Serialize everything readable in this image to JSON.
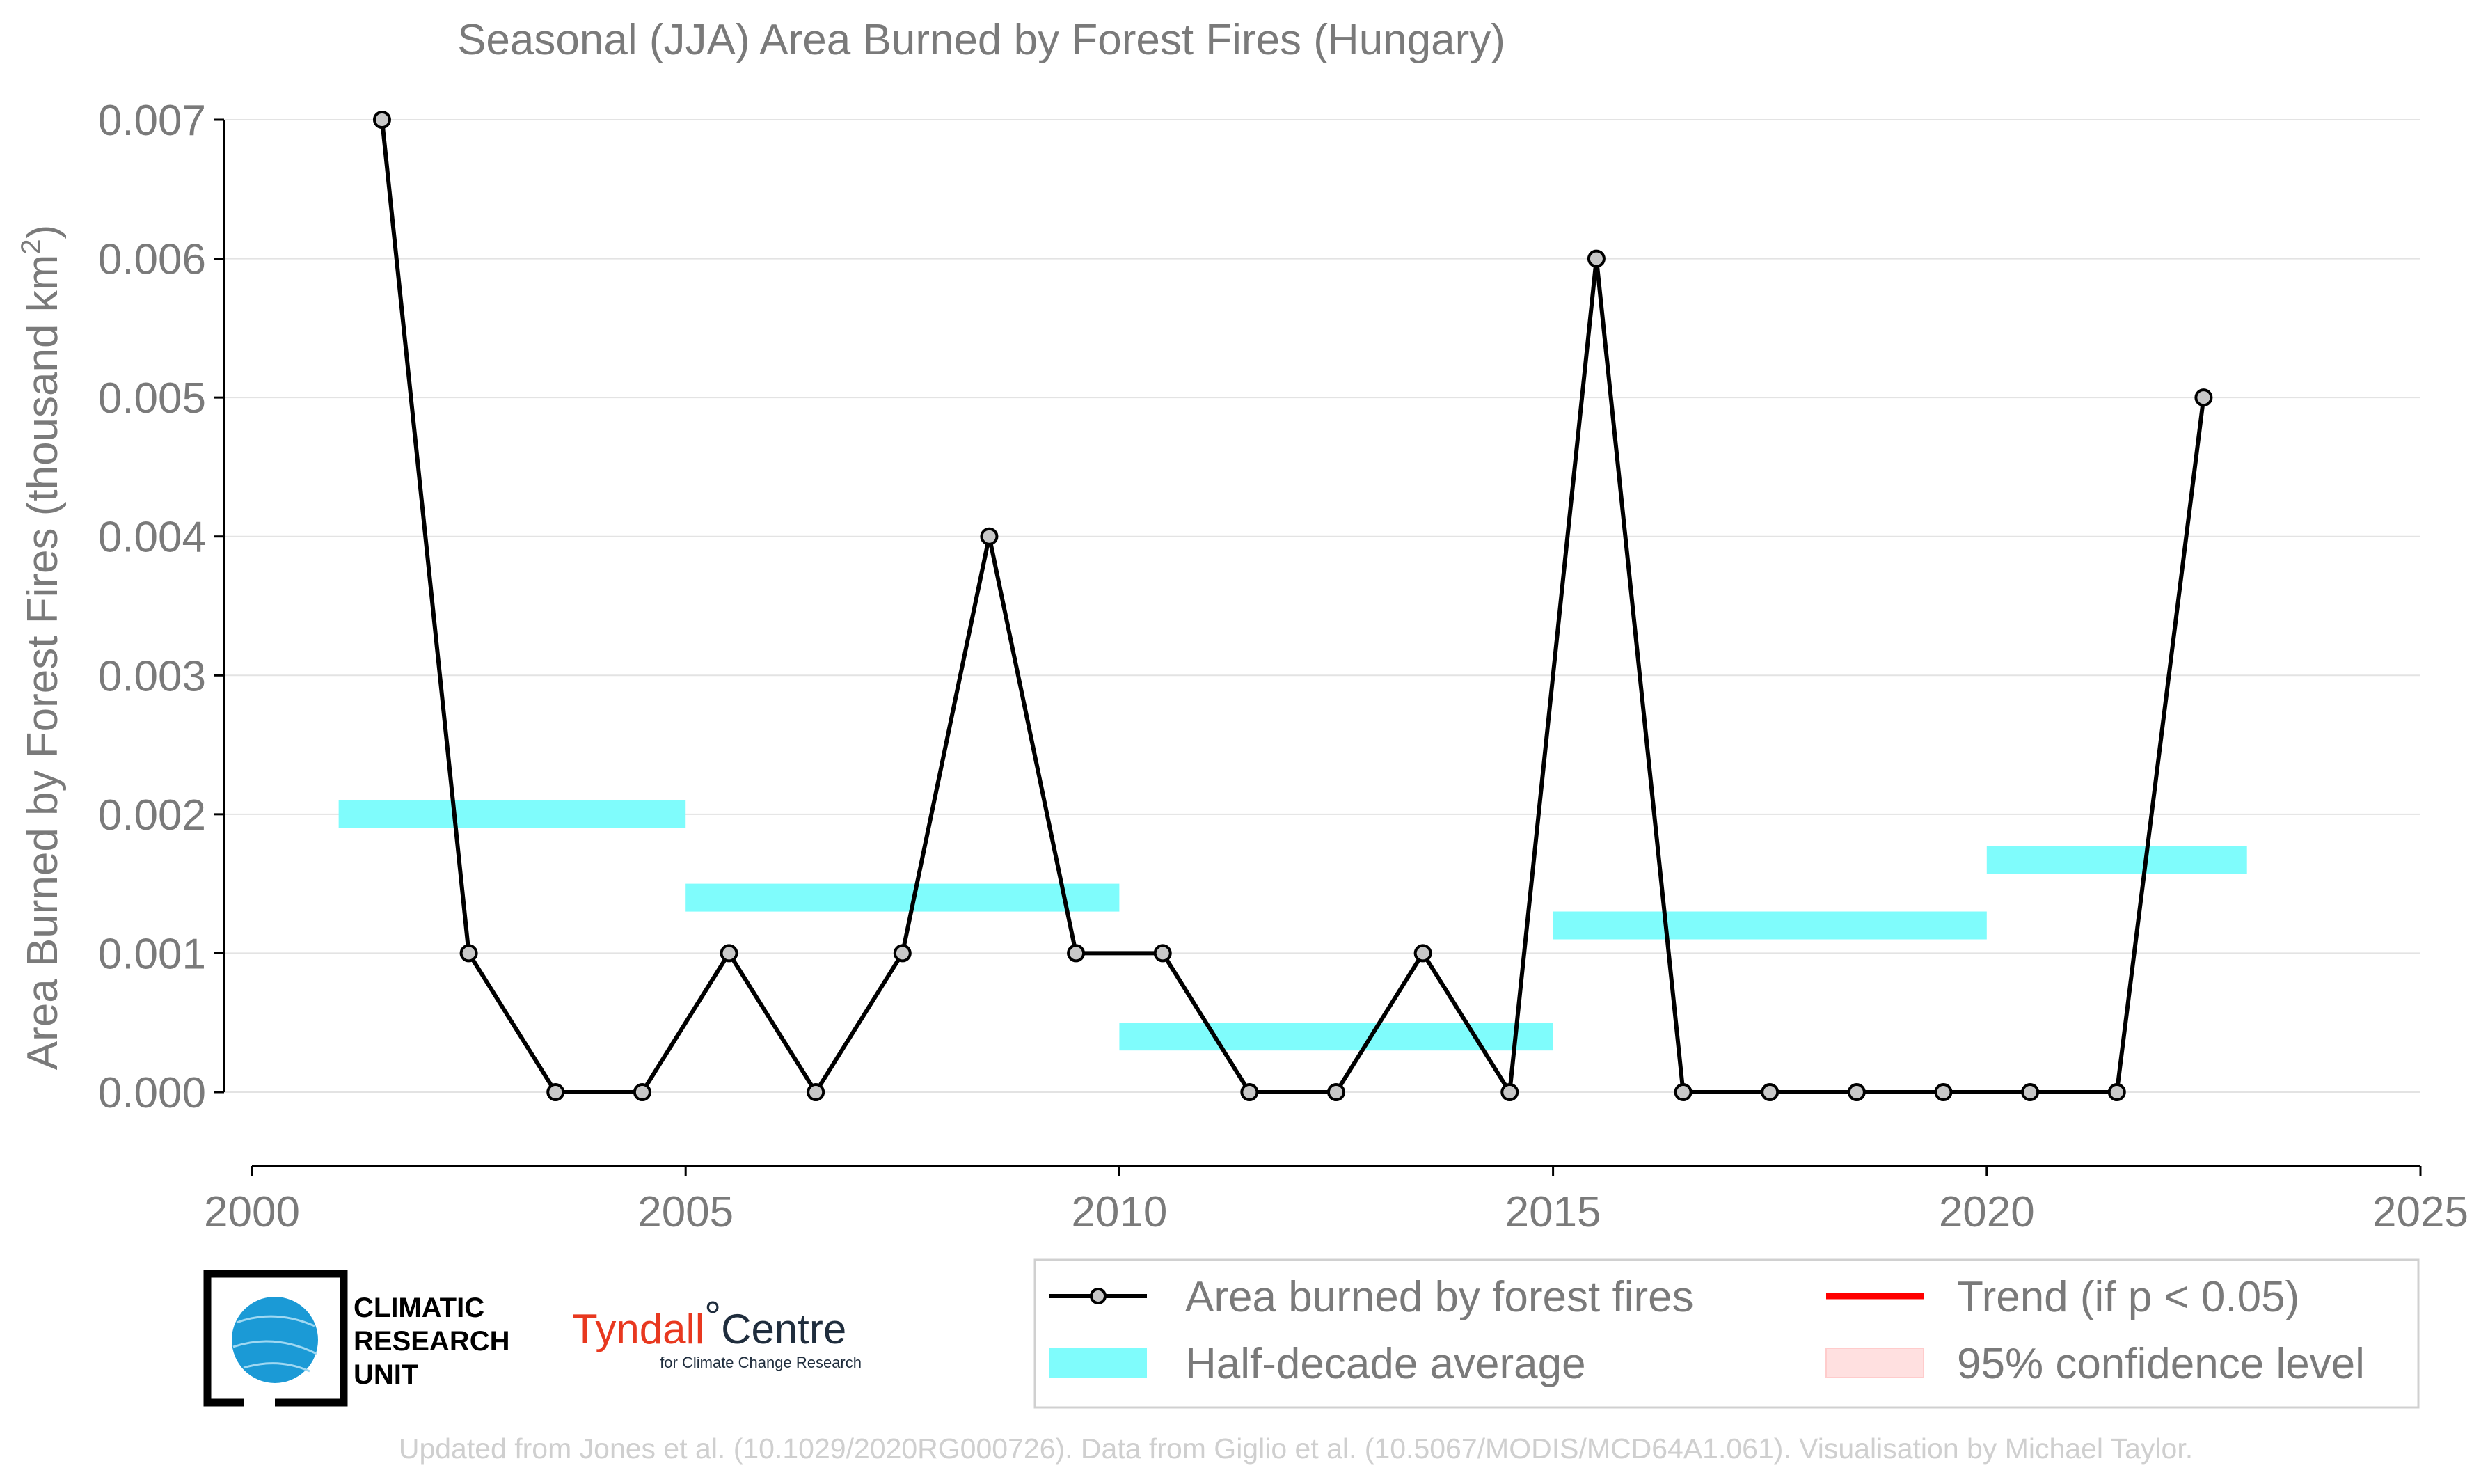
{
  "chart_data": {
    "type": "line",
    "title": "Seasonal (JJA) Area Burned by Forest Fires (Hungary)",
    "ylabel_main": "Area Burned by Forest Fires (thousand km",
    "ylabel_sup": "2",
    "ylabel_close": ")",
    "xlabel": "",
    "xlim": [
      2000,
      2025
    ],
    "ylim": [
      -0.00052,
      0.007
    ],
    "xticks": [
      2000,
      2005,
      2010,
      2015,
      2020,
      2025
    ],
    "xtick_labels": [
      "2000",
      "2005",
      "2010",
      "2015",
      "2020",
      "2025"
    ],
    "yticks": [
      0,
      0.001,
      0.002,
      0.003,
      0.004,
      0.005,
      0.006,
      0.007
    ],
    "ytick_labels": [
      "0.000",
      "0.001",
      "0.002",
      "0.003",
      "0.004",
      "0.005",
      "0.006",
      "0.007"
    ],
    "grid": "horizontal",
    "legend_position": "bottom-right",
    "series": [
      {
        "name": "Area burned by forest fires",
        "color": "#000000",
        "marker_fill": "#c8c8c8",
        "x": [
          2001.5,
          2002.5,
          2003.5,
          2004.5,
          2005.5,
          2006.5,
          2007.5,
          2008.5,
          2009.5,
          2010.5,
          2011.5,
          2012.5,
          2013.5,
          2014.5,
          2015.5,
          2016.5,
          2017.5,
          2018.5,
          2019.5,
          2020.5,
          2021.5,
          2022.5
        ],
        "y": [
          0.007,
          0.001,
          0.0,
          0.0,
          0.001,
          0.0,
          0.001,
          0.004,
          0.001,
          0.001,
          0.0,
          0.0,
          0.001,
          0.0,
          0.006,
          0.0,
          0.0,
          0.0,
          0.0,
          0.0,
          0.0,
          0.005
        ]
      }
    ],
    "half_decade_averages": {
      "name": "Half-decade average",
      "color": "#7ffcfc",
      "segments": [
        {
          "x_start": 2001,
          "x_end": 2005,
          "value": 0.002
        },
        {
          "x_start": 2005,
          "x_end": 2010,
          "value": 0.0014
        },
        {
          "x_start": 2010,
          "x_end": 2015,
          "value": 0.0004
        },
        {
          "x_start": 2015,
          "x_end": 2020,
          "value": 0.0012
        },
        {
          "x_start": 2020,
          "x_end": 2023,
          "value": 0.00167
        }
      ]
    },
    "legend": [
      {
        "label": "Area burned by forest fires",
        "kind": "line-marker",
        "color": "#000000"
      },
      {
        "label": "Trend (if p < 0.05)",
        "kind": "line",
        "color": "#ff0000"
      },
      {
        "label": "Half-decade average",
        "kind": "band",
        "color": "#7ffcfc"
      },
      {
        "label": "95% confidence level",
        "kind": "band",
        "color": "#ffe0e0"
      }
    ]
  },
  "logos": {
    "cru_lines": [
      "CLIMATIC",
      "RESEARCH",
      "UNIT"
    ],
    "tyndall_main": "Tyndall",
    "tyndall_degree": "°",
    "tyndall_centre": "Centre",
    "tyndall_sub": "for Climate Change Research"
  },
  "footer": "Updated from Jones et al. (10.1029/2020RG000726). Data from Giglio et al. (10.5067/MODIS/MCD64A1.061). Visualisation by Michael Taylor."
}
